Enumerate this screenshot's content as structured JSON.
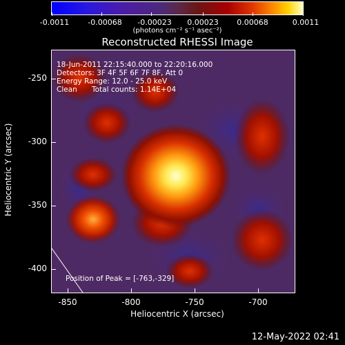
{
  "colorbar": {
    "tick_labels": [
      "-0.0011",
      "-0.00068",
      "-0.00023",
      "0.00023",
      "0.00068",
      "0.0011"
    ],
    "units": "(photons cm⁻² s⁻¹ asec⁻²)"
  },
  "title": "Reconstructed RHESSI Image",
  "annotations": {
    "time_range": "18-Jun-2011 22:15:40.000 to 22:20:16.000",
    "detectors": "Detectors: 3F 4F 5F 6F 7F 8F, Att 0",
    "energy_range": "Energy Range: 12.0 - 25.0 keV",
    "clean": "Clean",
    "total_counts": "Total counts: 1.14E+04",
    "peak_position": "Position of Peak = [-763,-329]"
  },
  "axes": {
    "xlabel": "Heliocentric X (arcsec)",
    "ylabel": "Heliocentric Y (arcsec)",
    "x_ticks": [
      "-850",
      "-800",
      "-750",
      "-700"
    ],
    "y_ticks": [
      "-250",
      "-300",
      "-350",
      "-400"
    ],
    "xlim": [
      -862,
      -671
    ],
    "ylim": [
      -422,
      -231
    ]
  },
  "peak": {
    "x": -763,
    "y": -329
  },
  "timestamp": "12-May-2022 02:41"
}
